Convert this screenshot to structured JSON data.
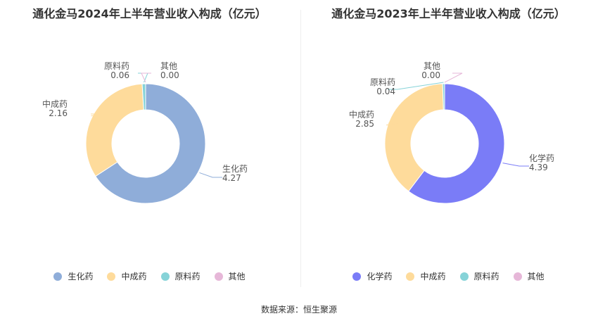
{
  "charts": [
    {
      "title": "通化金马2024年上半年营业收入构成（亿元）",
      "legend": [
        "生化药",
        "中成药",
        "原料药",
        "其他"
      ]
    },
    {
      "title": "通化金马2023年上半年营业收入构成（亿元）",
      "legend": [
        "化学药",
        "中成药",
        "原料药",
        "其他"
      ]
    }
  ],
  "footer": "数据来源：恒生聚源",
  "chart_data": [
    {
      "type": "pie",
      "title": "通化金马2024年上半年营业收入构成（亿元）",
      "donut": true,
      "legend_position": "bottom",
      "categories": [
        "生化药",
        "中成药",
        "原料药",
        "其他"
      ],
      "values": [
        4.27,
        2.16,
        0.06,
        0.0
      ],
      "value_labels": [
        "4.27",
        "2.16",
        "0.06",
        "0.00"
      ],
      "colors": [
        "#8fadd9",
        "#fedb9b",
        "#86d3d8",
        "#e6b7d8"
      ]
    },
    {
      "type": "pie",
      "title": "通化金马2023年上半年营业收入构成（亿元）",
      "donut": true,
      "legend_position": "bottom",
      "categories": [
        "化学药",
        "中成药",
        "原料药",
        "其他"
      ],
      "values": [
        4.39,
        2.85,
        0.04,
        0.0
      ],
      "value_labels": [
        "4.39",
        "2.85",
        "0.04",
        "0.00"
      ],
      "colors": [
        "#7a7cf7",
        "#fedb9b",
        "#86d3d8",
        "#e6b7d8"
      ]
    }
  ]
}
